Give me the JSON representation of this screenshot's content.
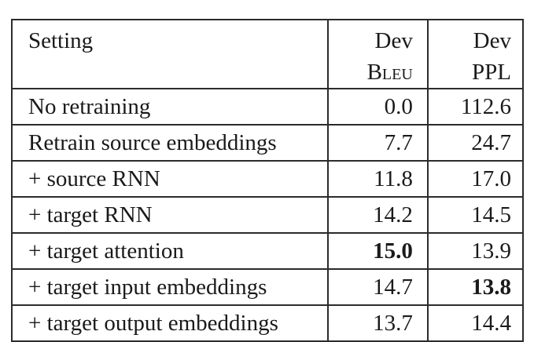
{
  "table": {
    "headers": {
      "setting": "Setting",
      "bleu_line1": "Dev",
      "bleu_line2": "Bleu",
      "ppl_line1": "Dev",
      "ppl_line2": "PPL"
    },
    "rows": [
      {
        "setting": "No retraining",
        "bleu": "0.0",
        "ppl": "112.6",
        "bleu_best": false,
        "ppl_best": false
      },
      {
        "setting": "Retrain source embeddings",
        "bleu": "7.7",
        "ppl": "24.7",
        "bleu_best": false,
        "ppl_best": false
      },
      {
        "setting": "+ source RNN",
        "bleu": "11.8",
        "ppl": "17.0",
        "bleu_best": false,
        "ppl_best": false
      },
      {
        "setting": "+ target RNN",
        "bleu": "14.2",
        "ppl": "14.5",
        "bleu_best": false,
        "ppl_best": false
      },
      {
        "setting": "+ target attention",
        "bleu": "15.0",
        "ppl": "13.9",
        "bleu_best": true,
        "ppl_best": false
      },
      {
        "setting": "+ target input embeddings",
        "bleu": "14.7",
        "ppl": "13.8",
        "bleu_best": false,
        "ppl_best": true
      },
      {
        "setting": "+ target output embeddings",
        "bleu": "13.7",
        "ppl": "14.4",
        "bleu_best": false,
        "ppl_best": false
      }
    ]
  }
}
